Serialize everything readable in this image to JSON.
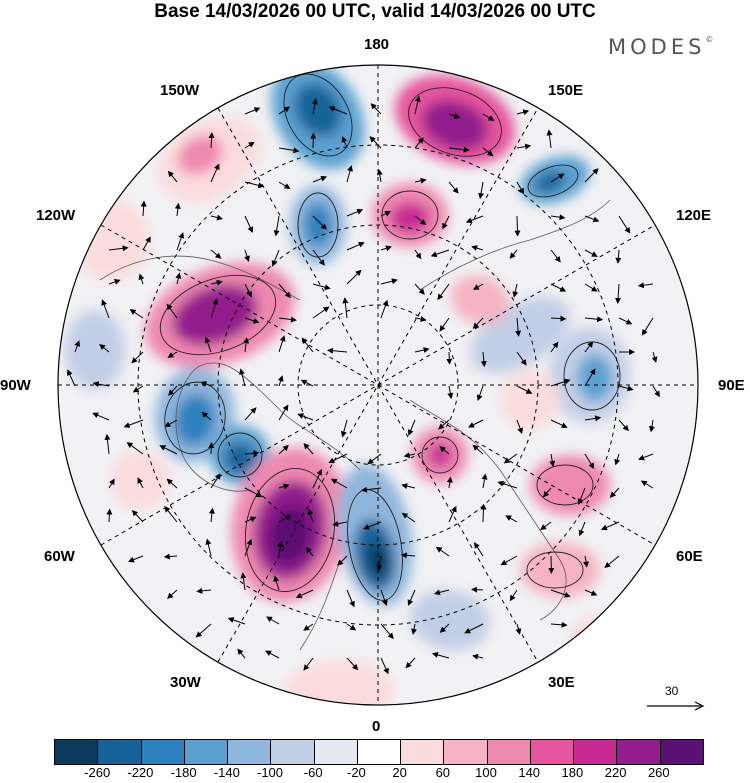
{
  "header": {
    "title": "Base 14/03/2026 00 UTC, valid 14/03/2026 00 UTC",
    "brand": "MODES",
    "brand_mark": "©"
  },
  "longitude_labels": {
    "lon_180": "180",
    "lon_150e": "150E",
    "lon_120e": "120E",
    "lon_90e": "90E",
    "lon_60e": "60E",
    "lon_30e": "30E",
    "lon_0": "0",
    "lon_30w": "30W",
    "lon_60w": "60W",
    "lon_90w": "90W",
    "lon_120w": "120W",
    "lon_150w": "150W"
  },
  "reference_vector": {
    "label": "30"
  },
  "colorbar": {
    "colors": [
      "#0f3b5c",
      "#16639a",
      "#2d80bf",
      "#5ba0d0",
      "#8fb6dc",
      "#c2cee6",
      "#e6e8f2",
      "#ffffff",
      "#fbdcdd",
      "#f5b3c3",
      "#ee88b0",
      "#e6559e",
      "#c82a94",
      "#931d8c",
      "#5b1075"
    ],
    "ticks": [
      "-260",
      "-220",
      "-180",
      "-140",
      "-100",
      "-60",
      "-20",
      "20",
      "60",
      "100",
      "140",
      "180",
      "220",
      "260"
    ]
  }
}
